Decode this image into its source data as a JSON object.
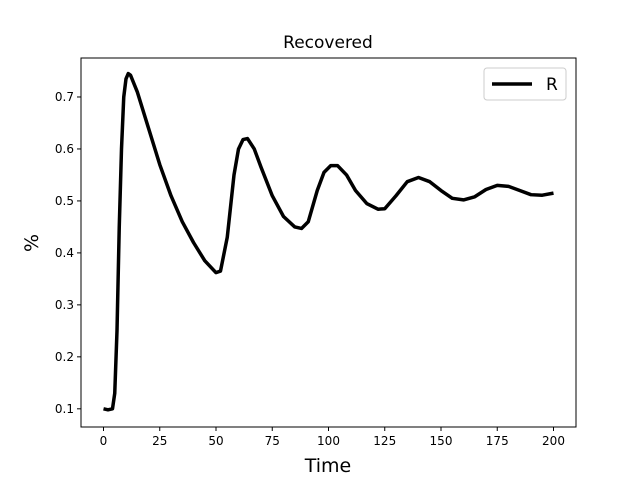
{
  "chart_data": {
    "type": "line",
    "title": "Recovered",
    "xlabel": "Time",
    "ylabel": "%",
    "x": [
      0,
      2,
      4,
      5,
      6,
      7,
      8,
      9,
      10,
      11,
      12,
      15,
      20,
      25,
      30,
      35,
      40,
      45,
      50,
      52,
      55,
      58,
      60,
      62,
      64,
      67,
      70,
      75,
      80,
      85,
      88,
      91,
      95,
      98,
      101,
      104,
      108,
      112,
      117,
      122,
      125,
      130,
      135,
      140,
      145,
      150,
      155,
      160,
      165,
      170,
      175,
      180,
      185,
      190,
      195,
      200
    ],
    "series": [
      {
        "name": "R",
        "color": "#000000",
        "values": [
          0.1,
          0.098,
          0.1,
          0.13,
          0.25,
          0.45,
          0.6,
          0.7,
          0.735,
          0.745,
          0.742,
          0.71,
          0.64,
          0.57,
          0.51,
          0.46,
          0.42,
          0.385,
          0.362,
          0.365,
          0.43,
          0.55,
          0.6,
          0.618,
          0.62,
          0.6,
          0.565,
          0.51,
          0.47,
          0.45,
          0.447,
          0.46,
          0.52,
          0.555,
          0.568,
          0.568,
          0.55,
          0.52,
          0.495,
          0.484,
          0.485,
          0.51,
          0.537,
          0.545,
          0.537,
          0.52,
          0.505,
          0.502,
          0.508,
          0.522,
          0.53,
          0.528,
          0.52,
          0.512,
          0.511,
          0.515
        ]
      }
    ],
    "xlim": [
      -10,
      210
    ],
    "xticks": [
      0,
      25,
      50,
      75,
      100,
      125,
      150,
      175,
      200
    ],
    "ylim": [
      0.065,
      0.775
    ],
    "yticks": [
      0.1,
      0.2,
      0.3,
      0.4,
      0.5,
      0.6,
      0.7
    ],
    "grid": false,
    "legend": "upper right"
  }
}
